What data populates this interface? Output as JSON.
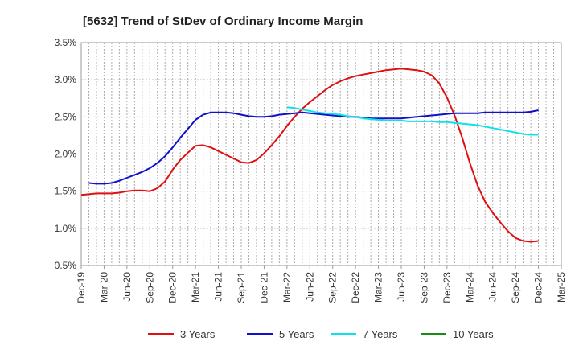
{
  "chart_data": {
    "type": "line",
    "title": "[5632]  Trend of StDev of Ordinary Income Margin",
    "y_ticks": [
      "3.5%",
      "3.0%",
      "2.5%",
      "2.0%",
      "1.5%",
      "1.0%",
      "0.5%"
    ],
    "ylim": [
      0.5,
      3.5
    ],
    "x_ticks": [
      "Dec-19",
      "Mar-20",
      "Jun-20",
      "Sep-20",
      "Dec-20",
      "Mar-21",
      "Jun-21",
      "Sep-21",
      "Dec-21",
      "Mar-22",
      "Jun-22",
      "Sep-22",
      "Dec-22",
      "Mar-23",
      "Jun-23",
      "Sep-23",
      "Dec-23",
      "Mar-24",
      "Jun-24",
      "Sep-24",
      "Dec-24",
      "Mar-25"
    ],
    "grid": true,
    "legend_position": "bottom",
    "series": [
      {
        "name": "3 Years",
        "color": "#e01010",
        "points": [
          [
            "Dec-19",
            1.45
          ],
          [
            "Jan-20",
            1.46
          ],
          [
            "Feb-20",
            1.47
          ],
          [
            "Mar-20",
            1.47
          ],
          [
            "Apr-20",
            1.47
          ],
          [
            "May-20",
            1.48
          ],
          [
            "Jun-20",
            1.5
          ],
          [
            "Jul-20",
            1.51
          ],
          [
            "Aug-20",
            1.51
          ],
          [
            "Sep-20",
            1.5
          ],
          [
            "Oct-20",
            1.54
          ],
          [
            "Nov-20",
            1.63
          ],
          [
            "Dec-20",
            1.79
          ],
          [
            "Jan-21",
            1.92
          ],
          [
            "Feb-21",
            2.02
          ],
          [
            "Mar-21",
            2.11
          ],
          [
            "Apr-21",
            2.12
          ],
          [
            "May-21",
            2.09
          ],
          [
            "Jun-21",
            2.04
          ],
          [
            "Jul-21",
            1.99
          ],
          [
            "Aug-21",
            1.94
          ],
          [
            "Sep-21",
            1.89
          ],
          [
            "Oct-21",
            1.88
          ],
          [
            "Nov-21",
            1.92
          ],
          [
            "Dec-21",
            2.01
          ],
          [
            "Jan-22",
            2.12
          ],
          [
            "Feb-22",
            2.24
          ],
          [
            "Mar-22",
            2.38
          ],
          [
            "Apr-22",
            2.5
          ],
          [
            "May-22",
            2.61
          ],
          [
            "Jun-22",
            2.7
          ],
          [
            "Jul-22",
            2.78
          ],
          [
            "Aug-22",
            2.86
          ],
          [
            "Sep-22",
            2.93
          ],
          [
            "Oct-22",
            2.98
          ],
          [
            "Nov-22",
            3.02
          ],
          [
            "Dec-22",
            3.05
          ],
          [
            "Jan-23",
            3.07
          ],
          [
            "Feb-23",
            3.09
          ],
          [
            "Mar-23",
            3.11
          ],
          [
            "Apr-23",
            3.13
          ],
          [
            "May-23",
            3.14
          ],
          [
            "Jun-23",
            3.15
          ],
          [
            "Jul-23",
            3.14
          ],
          [
            "Aug-23",
            3.13
          ],
          [
            "Sep-23",
            3.11
          ],
          [
            "Oct-23",
            3.06
          ],
          [
            "Nov-23",
            2.95
          ],
          [
            "Dec-23",
            2.76
          ],
          [
            "Jan-24",
            2.52
          ],
          [
            "Feb-24",
            2.22
          ],
          [
            "Mar-24",
            1.88
          ],
          [
            "Apr-24",
            1.58
          ],
          [
            "May-24",
            1.36
          ],
          [
            "Jun-24",
            1.21
          ],
          [
            "Jul-24",
            1.08
          ],
          [
            "Aug-24",
            0.96
          ],
          [
            "Sep-24",
            0.87
          ],
          [
            "Oct-24",
            0.83
          ],
          [
            "Nov-24",
            0.82
          ],
          [
            "Dec-24",
            0.83
          ]
        ]
      },
      {
        "name": "5 Years",
        "color": "#1010cc",
        "points": [
          [
            "Dec-19",
            null
          ],
          [
            "Jan-20",
            1.61
          ],
          [
            "Feb-20",
            1.6
          ],
          [
            "Mar-20",
            1.6
          ],
          [
            "Apr-20",
            1.61
          ],
          [
            "May-20",
            1.64
          ],
          [
            "Jun-20",
            1.68
          ],
          [
            "Jul-20",
            1.72
          ],
          [
            "Aug-20",
            1.76
          ],
          [
            "Sep-20",
            1.81
          ],
          [
            "Oct-20",
            1.88
          ],
          [
            "Nov-20",
            1.97
          ],
          [
            "Dec-20",
            2.09
          ],
          [
            "Jan-21",
            2.22
          ],
          [
            "Feb-21",
            2.34
          ],
          [
            "Mar-21",
            2.46
          ],
          [
            "Apr-21",
            2.53
          ],
          [
            "May-21",
            2.56
          ],
          [
            "Jun-21",
            2.56
          ],
          [
            "Jul-21",
            2.56
          ],
          [
            "Aug-21",
            2.55
          ],
          [
            "Sep-21",
            2.53
          ],
          [
            "Oct-21",
            2.51
          ],
          [
            "Nov-21",
            2.5
          ],
          [
            "Dec-21",
            2.5
          ],
          [
            "Jan-22",
            2.51
          ],
          [
            "Feb-22",
            2.53
          ],
          [
            "Mar-22",
            2.54
          ],
          [
            "Apr-22",
            2.55
          ],
          [
            "May-22",
            2.56
          ],
          [
            "Jun-22",
            2.55
          ],
          [
            "Jul-22",
            2.54
          ],
          [
            "Aug-22",
            2.53
          ],
          [
            "Sep-22",
            2.52
          ],
          [
            "Oct-22",
            2.51
          ],
          [
            "Nov-22",
            2.5
          ],
          [
            "Dec-22",
            2.5
          ],
          [
            "Jan-23",
            2.49
          ],
          [
            "Feb-23",
            2.48
          ],
          [
            "Mar-23",
            2.48
          ],
          [
            "Apr-23",
            2.48
          ],
          [
            "May-23",
            2.48
          ],
          [
            "Jun-23",
            2.48
          ],
          [
            "Jul-23",
            2.49
          ],
          [
            "Aug-23",
            2.5
          ],
          [
            "Sep-23",
            2.51
          ],
          [
            "Oct-23",
            2.52
          ],
          [
            "Nov-23",
            2.53
          ],
          [
            "Dec-23",
            2.54
          ],
          [
            "Jan-24",
            2.55
          ],
          [
            "Feb-24",
            2.55
          ],
          [
            "Mar-24",
            2.55
          ],
          [
            "Apr-24",
            2.55
          ],
          [
            "May-24",
            2.56
          ],
          [
            "Jun-24",
            2.56
          ],
          [
            "Jul-24",
            2.56
          ],
          [
            "Aug-24",
            2.56
          ],
          [
            "Sep-24",
            2.56
          ],
          [
            "Oct-24",
            2.56
          ],
          [
            "Nov-24",
            2.57
          ],
          [
            "Dec-24",
            2.59
          ]
        ]
      },
      {
        "name": "7 Years",
        "color": "#10e0e8",
        "points": [
          [
            "Mar-22",
            2.63
          ],
          [
            "Apr-22",
            2.62
          ],
          [
            "May-22",
            2.6
          ],
          [
            "Jun-22",
            2.58
          ],
          [
            "Jul-22",
            2.56
          ],
          [
            "Aug-22",
            2.55
          ],
          [
            "Sep-22",
            2.54
          ],
          [
            "Oct-22",
            2.53
          ],
          [
            "Nov-22",
            2.51
          ],
          [
            "Dec-22",
            2.5
          ],
          [
            "Jan-23",
            2.48
          ],
          [
            "Feb-23",
            2.47
          ],
          [
            "Mar-23",
            2.46
          ],
          [
            "Apr-23",
            2.45
          ],
          [
            "May-23",
            2.45
          ],
          [
            "Jun-23",
            2.45
          ],
          [
            "Jul-23",
            2.44
          ],
          [
            "Aug-23",
            2.44
          ],
          [
            "Sep-23",
            2.44
          ],
          [
            "Oct-23",
            2.44
          ],
          [
            "Nov-23",
            2.43
          ],
          [
            "Dec-23",
            2.43
          ],
          [
            "Jan-24",
            2.42
          ],
          [
            "Feb-24",
            2.41
          ],
          [
            "Mar-24",
            2.4
          ],
          [
            "Apr-24",
            2.39
          ],
          [
            "May-24",
            2.37
          ],
          [
            "Jun-24",
            2.35
          ],
          [
            "Jul-24",
            2.33
          ],
          [
            "Aug-24",
            2.31
          ],
          [
            "Sep-24",
            2.29
          ],
          [
            "Oct-24",
            2.27
          ],
          [
            "Nov-24",
            2.26
          ],
          [
            "Dec-24",
            2.26
          ]
        ]
      },
      {
        "name": "10 Years",
        "color": "#1a8a1a",
        "points": []
      }
    ]
  }
}
